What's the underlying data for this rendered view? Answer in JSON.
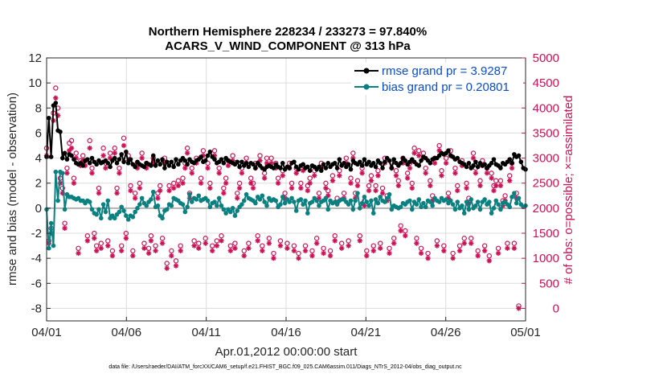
{
  "chart_data": {
    "type": "line",
    "title_line1": "Northern Hemisphere 228234 / 233273 = 97.840%",
    "title_line2": "ACARS_V_WIND_COMPONENT @ 313 hPa",
    "xlabel": "Apr.01,2012 00:00:00 start",
    "ylabel_left": "rmse and bias (model - observation)",
    "ylabel_right": "# of obs: o=possible; ×=assimilated",
    "x_ticks": [
      "04/01",
      "04/06",
      "04/11",
      "04/16",
      "04/21",
      "04/26",
      "05/01"
    ],
    "x_tick_days": [
      0,
      5,
      10,
      15,
      20,
      25,
      30
    ],
    "xlim_days": [
      0,
      30
    ],
    "ylim_left": [
      -9,
      12
    ],
    "y_ticks_left": [
      -8,
      -6,
      -4,
      -2,
      0,
      2,
      4,
      6,
      8,
      10,
      12
    ],
    "ylim_right": [
      -250,
      5000
    ],
    "y_ticks_right": [
      0,
      500,
      1000,
      1500,
      2000,
      2500,
      3000,
      3500,
      4000,
      4500,
      5000
    ],
    "grid": true,
    "legend_position": "top-right",
    "legend": [
      {
        "label": "rmse grand pr = 3.9287",
        "color": "#000000"
      },
      {
        "label": "bias grand pr = 0.20801",
        "color": "#0b8080"
      }
    ],
    "colors": {
      "rmse": "#000000",
      "bias": "#0b8080",
      "obs": "#cc1155",
      "zero_line": "#b3b3b3"
    },
    "rmse": [
      4.1,
      7.2,
      4.1,
      8.2,
      8.4,
      6.2,
      6.1,
      4.0,
      4.4,
      3.9,
      4.3,
      4.2,
      3.9,
      3.6,
      3.5,
      3.6,
      3.4,
      3.8,
      3.9,
      3.6,
      4.0,
      3.7,
      3.5,
      3.8,
      3.6,
      3.7,
      3.8,
      3.6,
      3.3,
      3.8,
      4.0,
      3.6,
      3.9,
      4.3,
      3.7,
      4.5,
      3.6,
      3.9,
      3.5,
      3.3,
      3.7,
      3.5,
      3.4,
      3.3,
      3.6,
      3.5,
      3.4,
      4.2,
      3.4,
      3.8,
      3.5,
      3.9,
      3.2,
      3.7,
      3.4,
      3.7,
      3.3,
      3.9,
      3.5,
      3.8,
      4.0,
      3.8,
      3.5,
      3.9,
      3.7,
      3.6,
      3.8,
      3.9,
      4.1,
      3.7,
      3.8,
      4.2,
      4.5,
      4.1,
      3.9,
      3.6,
      3.7,
      3.9,
      3.6,
      4.0,
      3.8,
      3.7,
      3.6,
      3.5,
      3.7,
      3.3,
      3.7,
      3.4,
      3.6,
      3.3,
      3.6,
      3.5,
      3.2,
      3.6,
      3.4,
      3.2,
      3.1,
      3.3,
      3.4,
      3.3,
      3.2,
      3.5,
      3.3,
      3.2,
      3.6,
      3.1,
      3.3,
      3.2,
      3.6,
      3.7,
      3.3,
      3.1,
      3.4,
      3.5,
      3.2,
      3.3,
      3.0,
      3.4,
      3.3,
      3.1,
      3.3,
      3.0,
      3.5,
      3.2,
      3.6,
      3.3,
      3.5,
      3.6,
      3.2,
      3.9,
      3.4,
      3.6,
      3.3,
      3.5,
      3.1,
      3.8,
      3.6,
      3.5,
      3.7,
      3.4,
      3.9,
      3.5,
      3.7,
      3.4,
      3.6,
      3.3,
      3.8,
      3.6,
      3.2,
      3.7,
      4.0,
      3.8,
      3.2,
      3.9,
      3.6,
      3.4,
      3.6,
      4.0,
      3.8,
      3.5,
      3.7,
      3.9,
      3.7,
      3.5,
      3.4,
      3.8,
      4.1,
      4.0,
      3.8,
      3.6,
      3.9,
      4.0,
      4.0,
      4.2,
      4.4,
      4.3,
      4.4,
      4.6,
      4.2,
      4.1,
      3.9,
      4.0,
      3.7,
      3.6,
      3.5,
      3.3,
      3.6,
      3.2,
      3.4,
      3.7,
      3.3,
      3.6,
      3.4,
      3.5,
      3.2,
      3.4,
      3.6,
      3.9,
      3.5,
      3.4,
      3.2,
      3.6,
      3.5,
      3.7,
      3.9,
      3.6,
      4.3,
      4.1,
      4.2,
      3.7,
      3.2,
      3.1
    ],
    "bias": [
      -0.1,
      -3.2,
      -1.2,
      -3.0,
      2.9,
      0.6,
      2.9,
      2.8,
      -0.1,
      1.1,
      0.9,
      0.9,
      0.8,
      0.7,
      0.8,
      0.6,
      0.6,
      0.4,
      0.6,
      0.5,
      -0.1,
      -0.4,
      -0.5,
      -0.1,
      -0.8,
      0.3,
      -0.3,
      0.6,
      -0.8,
      -0.6,
      -0.8,
      -0.5,
      -0.3,
      0.1,
      -0.2,
      -0.6,
      -0.9,
      -0.6,
      -0.7,
      -0.3,
      0.0,
      0.3,
      0.8,
      0.4,
      0.2,
      0.5,
      0.7,
      1.3,
      0.1,
      0.2,
      -0.6,
      -0.8,
      -0.2,
      -0.1,
      0.3,
      0.2,
      0.8,
      0.7,
      0.6,
      0.4,
      0.3,
      -0.3,
      0.1,
      1.1,
      0.5,
      0.8,
      0.7,
      1.0,
      0.6,
      0.7,
      0.8,
      0.6,
      0.1,
      0.4,
      0.5,
      0.2,
      0.8,
      0.2,
      -0.1,
      -0.4,
      -0.1,
      -0.3,
      0.0,
      -0.6,
      -0.2,
      0.1,
      0.3,
      0.6,
      1.1,
      0.8,
      0.7,
      0.6,
      0.4,
      0.9,
      0.7,
      1.0,
      0.5,
      0.2,
      0.8,
      0.6,
      0.7,
      0.6,
      0.1,
      0.3,
      0.9,
      0.4,
      0.7,
      0.5,
      0.8,
      0.5,
      -0.2,
      0.6,
      0.7,
      0.3,
      0.6,
      -0.4,
      0.4,
      0.5,
      0.8,
      0.6,
      0.2,
      0.5,
      0.6,
      0.8,
      -0.1,
      0.6,
      0.4,
      0.5,
      0.3,
      0.6,
      0.7,
      0.7,
      0.5,
      0.3,
      0.6,
      -0.1,
      0.6,
      1.2,
      0.0,
      0.4,
      0.9,
      0.5,
      0.2,
      0.6,
      -0.4,
      0.7,
      0.4,
      0.9,
      0.6,
      0.5,
      0.8,
      1.1,
      -0.1,
      0.2,
      0.1,
      0.0,
      0.1,
      0.4,
      0.3,
      0.5,
      0.6,
      -0.1,
      0.5,
      0.3,
      0.7,
      0.1,
      0.4,
      0.1,
      0.6,
      0.5,
      0.2,
      0.8,
      0.6,
      0.5,
      0.8,
      0.6,
      0.7,
      0.4,
      0.6,
      0.3,
      -0.1,
      0.5,
      0.0,
      0.2,
      -0.4,
      0.5,
      -0.1,
      0.7,
      0.0,
      0.2,
      0.5,
      -0.1,
      0.5,
      0.7,
      0.3,
      0.5,
      -0.4,
      0.0,
      0.6,
      0.3,
      -0.1,
      0.4,
      0.5,
      0.3,
      0.1,
      0.9,
      1.2,
      0.4,
      0.8,
      0.3,
      0.1,
      0.2
    ],
    "obs_assimilated": [
      3050,
      1300,
      1500,
      3750,
      4200,
      3850,
      2500,
      2300,
      1600,
      2700,
      3150,
      3200,
      2500,
      3000,
      1100,
      2850,
      2950,
      2850,
      1350,
      3200,
      2700,
      1400,
      1150,
      2300,
      1200,
      3050,
      2800,
      1250,
      3000,
      1050,
      3100,
      2300,
      2700,
      1150,
      3250,
      1400,
      2950,
      2350,
      1050,
      2200,
      2800,
      2400,
      3000,
      1200,
      2800,
      1100,
      1350,
      2900,
      1150,
      2200,
      2350,
      1300,
      2900,
      800,
      2350,
      1050,
      2400,
      850,
      2450,
      1150,
      2500,
      2800,
      3100,
      2200,
      2700,
      1250,
      2900,
      1200,
      2500,
      3050,
      1300,
      2800,
      2400,
      1150,
      3050,
      1250,
      2700,
      1350,
      2300,
      2500,
      2850,
      1150,
      2950,
      1200,
      2200,
      2400,
      2700,
      1050,
      2900,
      1200,
      2500,
      2400,
      2800,
      1350,
      2950,
      1150,
      2600,
      2900,
      1300,
      2900,
      1000,
      2800,
      2500,
      1250,
      2650,
      2200,
      1200,
      2800,
      2400,
      1150,
      2700,
      1000,
      2400,
      2750,
      1150,
      2350,
      2500,
      1050,
      2650,
      1300,
      2200,
      2800,
      1100,
      2400,
      2250,
      1050,
      2550,
      1350,
      2100,
      2650,
      1200,
      2200,
      2900,
      1250,
      2500,
      3000,
      2200,
      2450,
      1350,
      2700,
      2050,
      1050,
      2350,
      2550,
      1150,
      2350,
      2650,
      1200,
      2300,
      2900,
      2150,
      1100,
      2800,
      1300,
      2650,
      2450,
      1550,
      2900,
      1450,
      2600,
      2800,
      2400,
      3100,
      1300,
      3050,
      1100,
      3000,
      2700,
      1000,
      2450,
      2150,
      2900,
      1250,
      3150,
      2650,
      1150,
      2900,
      2200,
      3050,
      1000,
      2700,
      2350,
      1150,
      2850,
      1300,
      2400,
      2100,
      1300,
      3000,
      2700,
      1050,
      2450,
      2850,
      1150,
      2700,
      950,
      2600,
      2350,
      2450,
      1100,
      2450,
      2050,
      2150,
      1200,
      2550,
      2800,
      1200,
      2200,
      0
    ],
    "obs_possible": [
      3150,
      1300,
      1550,
      3850,
      4350,
      3950,
      2550,
      2350,
      1650,
      2750,
      3250,
      3300,
      2550,
      3050,
      1150,
      2900,
      3000,
      2900,
      1400,
      3300,
      2750,
      1450,
      1200,
      2350,
      1250,
      3150,
      2850,
      1300,
      3050,
      1100,
      3150,
      2350,
      2750,
      1200,
      3350,
      1450,
      3000,
      2400,
      1100,
      2250,
      2850,
      2450,
      3050,
      1250,
      2850,
      1150,
      1400,
      2950,
      1200,
      2250,
      2400,
      1350,
      2950,
      850,
      2400,
      1100,
      2450,
      900,
      2500,
      1200,
      2550,
      2850,
      3150,
      2250,
      2750,
      1300,
      2950,
      1250,
      2550,
      3100,
      1350,
      2850,
      2450,
      1200,
      3100,
      1300,
      2750,
      1400,
      2350,
      2550,
      2900,
      1200,
      3000,
      1250,
      2250,
      2450,
      2750,
      1100,
      2950,
      1250,
      2550,
      2450,
      2850,
      1400,
      3000,
      1200,
      2650,
      2950,
      1350,
      2950,
      1050,
      2850,
      2550,
      1300,
      2700,
      2250,
      1250,
      2850,
      2450,
      1200,
      2750,
      1050,
      2450,
      2800,
      1200,
      2400,
      2550,
      1100,
      2700,
      1350,
      2250,
      2850,
      1150,
      2450,
      2300,
      1100,
      2600,
      1400,
      2150,
      2700,
      1250,
      2250,
      2950,
      1300,
      2550,
      3050,
      2250,
      2500,
      1400,
      2750,
      2100,
      1100,
      2400,
      2600,
      1200,
      2400,
      2700,
      1250,
      2350,
      2950,
      2200,
      1150,
      2850,
      1350,
      2700,
      2500,
      1600,
      2950,
      1500,
      2650,
      2850,
      2450,
      3150,
      1350,
      3100,
      1150,
      3050,
      2750,
      1050,
      2500,
      2200,
      2950,
      1300,
      3200,
      2700,
      1200,
      2950,
      2250,
      3100,
      1050,
      2750,
      2400,
      1200,
      2900,
      1350,
      2450,
      2150,
      1350,
      3050,
      2750,
      1100,
      2500,
      2900,
      1200,
      2750,
      1000,
      2650,
      2400,
      2500,
      1150,
      2500,
      2100,
      2200,
      1250,
      2600,
      2850,
      1250,
      2250,
      0
    ]
  },
  "footnote": "data file: /Users/raeder/DAI/ATM_forcXX/CAM6_setup/f.e21.FHIST_BGC.f09_025.CAM6assim.011/Diags_NTrS_2012-04/obs_diag_output.nc"
}
